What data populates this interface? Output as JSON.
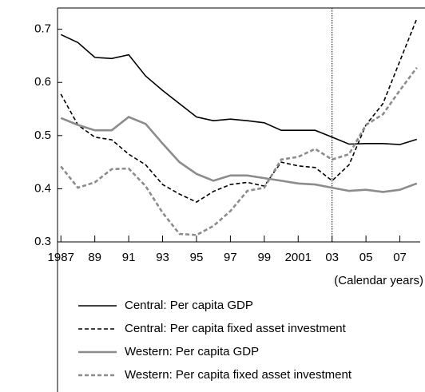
{
  "chart_data": {
    "type": "line",
    "x_unit_label": "(Calendar years)",
    "x": [
      1987,
      1988,
      1989,
      1990,
      1991,
      1992,
      1993,
      1994,
      1995,
      1996,
      1997,
      1998,
      1999,
      2000,
      2001,
      2002,
      2003,
      2004,
      2005,
      2006,
      2007,
      2008
    ],
    "series": [
      {
        "name": "Central: Per capita GDP",
        "color": "#000000",
        "dash": false,
        "values": [
          0.69,
          0.675,
          0.647,
          0.645,
          0.652,
          0.612,
          0.585,
          0.56,
          0.535,
          0.528,
          0.531,
          0.528,
          0.524,
          0.51,
          0.51,
          0.51,
          0.497,
          0.484,
          0.485,
          0.485,
          0.483,
          0.493
        ]
      },
      {
        "name": "Central: Per capita fixed asset investment",
        "color": "#000000",
        "dash": true,
        "values": [
          0.578,
          0.52,
          0.497,
          0.492,
          0.465,
          0.445,
          0.408,
          0.39,
          0.375,
          0.395,
          0.408,
          0.412,
          0.405,
          0.45,
          0.443,
          0.44,
          0.415,
          0.445,
          0.52,
          0.56,
          0.64,
          0.72
        ]
      },
      {
        "name": "Western: Per capita GDP",
        "color": "#8c8c8c",
        "dash": false,
        "values": [
          0.533,
          0.52,
          0.51,
          0.51,
          0.535,
          0.522,
          0.485,
          0.45,
          0.428,
          0.415,
          0.425,
          0.425,
          0.42,
          0.415,
          0.41,
          0.408,
          0.402,
          0.396,
          0.398,
          0.394,
          0.398,
          0.41
        ]
      },
      {
        "name": "Western: Per capita fixed asset investment",
        "color": "#8c8c8c",
        "dash": true,
        "values": [
          0.442,
          0.402,
          0.412,
          0.437,
          0.438,
          0.405,
          0.355,
          0.315,
          0.313,
          0.33,
          0.358,
          0.396,
          0.402,
          0.455,
          0.46,
          0.475,
          0.455,
          0.465,
          0.52,
          0.54,
          0.585,
          0.628
        ]
      }
    ],
    "xlim": [
      1986.8,
      2008.2
    ],
    "xticks": [
      1987,
      {
        "value": 1989,
        "label": "89"
      },
      {
        "value": 1991,
        "label": "91"
      },
      {
        "value": 1993,
        "label": "93"
      },
      {
        "value": 1995,
        "label": "95"
      },
      {
        "value": 1997,
        "label": "97"
      },
      {
        "value": 1999,
        "label": "99"
      },
      2001,
      {
        "value": 2003,
        "label": "03"
      },
      {
        "value": 2005,
        "label": "05"
      },
      {
        "value": 2007,
        "label": "07"
      }
    ],
    "ylim": [
      0.3,
      0.74
    ],
    "yticks": [
      0.3,
      0.4,
      0.5,
      0.6,
      0.7
    ],
    "vline": 2003,
    "grid": false
  }
}
